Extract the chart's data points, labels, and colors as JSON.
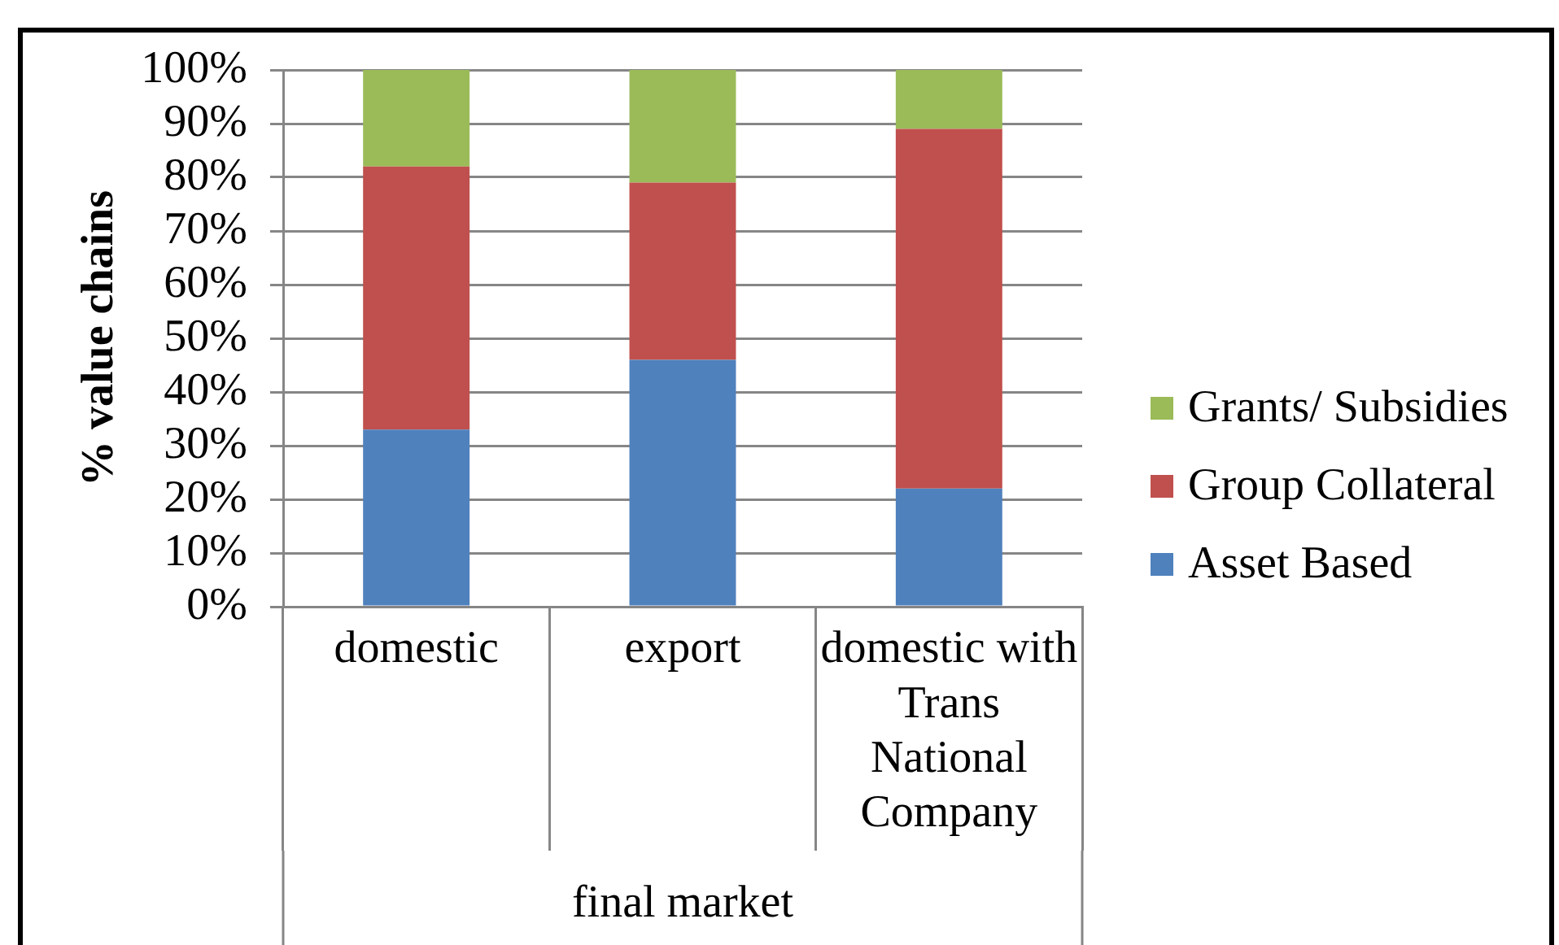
{
  "chart_data": {
    "type": "bar",
    "stacked": true,
    "ylabel": "% value chains",
    "xlabel": "final market",
    "categories": [
      "domestic",
      "export",
      "domestic with Trans National Company"
    ],
    "series": [
      {
        "name": "Asset Based",
        "color": "#4f81bd",
        "values": [
          33,
          46,
          22
        ]
      },
      {
        "name": "Group Collateral",
        "color": "#c0504d",
        "values": [
          49,
          33,
          67
        ]
      },
      {
        "name": "Grants/ Subsidies",
        "color": "#9bbb59",
        "values": [
          18,
          21,
          11
        ]
      }
    ],
    "ylim": [
      0,
      100
    ],
    "yticks": [
      {
        "value": 0,
        "label": "0%"
      },
      {
        "value": 10,
        "label": "10%"
      },
      {
        "value": 20,
        "label": "20%"
      },
      {
        "value": 30,
        "label": "30%"
      },
      {
        "value": 40,
        "label": "40%"
      },
      {
        "value": 50,
        "label": "50%"
      },
      {
        "value": 60,
        "label": "60%"
      },
      {
        "value": 70,
        "label": "70%"
      },
      {
        "value": 80,
        "label": "80%"
      },
      {
        "value": 90,
        "label": "90%"
      },
      {
        "value": 100,
        "label": "100%"
      }
    ],
    "grid": "y",
    "legend": "right"
  }
}
